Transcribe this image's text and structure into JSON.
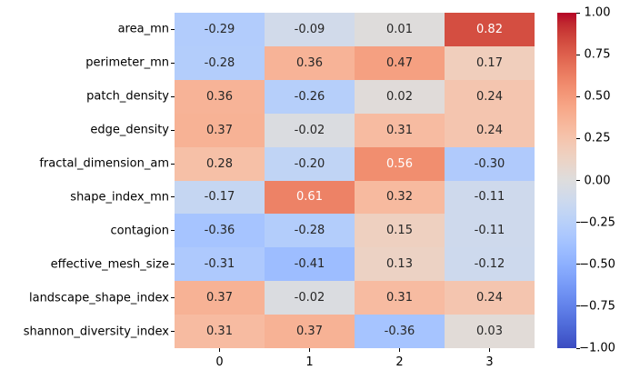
{
  "figure": {
    "background": "#ffffff",
    "text_color": "#000000"
  },
  "chart_data": {
    "type": "heatmap",
    "title": "",
    "xlabel": "",
    "ylabel": "",
    "rows": [
      "area_mn",
      "perimeter_mn",
      "patch_density",
      "edge_density",
      "fractal_dimension_am",
      "shape_index_mn",
      "contagion",
      "effective_mesh_size",
      "landscape_shape_index",
      "shannon_diversity_index"
    ],
    "columns": [
      "0",
      "1",
      "2",
      "3"
    ],
    "values": [
      [
        -0.29,
        -0.09,
        0.01,
        0.82
      ],
      [
        -0.28,
        0.36,
        0.47,
        0.17
      ],
      [
        0.36,
        -0.26,
        0.02,
        0.24
      ],
      [
        0.37,
        -0.02,
        0.31,
        0.24
      ],
      [
        0.28,
        -0.2,
        0.56,
        -0.3
      ],
      [
        -0.17,
        0.61,
        0.32,
        -0.11
      ],
      [
        -0.36,
        -0.28,
        0.15,
        -0.11
      ],
      [
        -0.31,
        -0.41,
        0.13,
        -0.12
      ],
      [
        0.37,
        -0.02,
        0.31,
        0.24
      ],
      [
        0.31,
        0.37,
        -0.36,
        0.03
      ]
    ],
    "colormap": "coolwarm",
    "vmin": -1,
    "vmax": 1,
    "grid": false,
    "annotation_format": "0.2f",
    "annotation_colors": {
      "dark": "#262626",
      "light": "#ffffff"
    },
    "colorbar": {
      "position": "right",
      "tick_labels": [
        "1.00",
        "0.75",
        "0.50",
        "0.25",
        "0.00",
        "−0.25",
        "−0.50",
        "−0.75",
        "−1.00"
      ],
      "top_color": "#b40426",
      "mid_color": "#dddddd",
      "bottom_color": "#3b4cc0"
    }
  }
}
